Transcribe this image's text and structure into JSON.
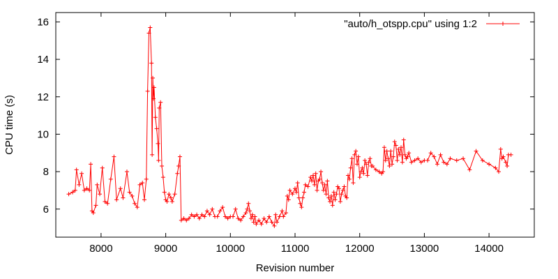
{
  "chart_data": {
    "type": "line",
    "xlabel": "Revision number",
    "ylabel": "CPU time (s)",
    "xlim": [
      7300,
      14700
    ],
    "ylim": [
      4.5,
      16.5
    ],
    "xticks": [
      8000,
      9000,
      10000,
      11000,
      12000,
      13000,
      14000
    ],
    "yticks": [
      6,
      8,
      10,
      12,
      14,
      16
    ],
    "grid": false,
    "legend_position": "top-right",
    "series": [
      {
        "name": "\"auto/h_otspp.cpu\" using 1:2",
        "color": "#ff0000",
        "marker": "plus",
        "points": [
          [
            7500,
            6.8
          ],
          [
            7560,
            6.9
          ],
          [
            7600,
            7.0
          ],
          [
            7620,
            8.1
          ],
          [
            7660,
            7.3
          ],
          [
            7700,
            7.9
          ],
          [
            7740,
            7.0
          ],
          [
            7780,
            7.1
          ],
          [
            7820,
            7.0
          ],
          [
            7840,
            8.4
          ],
          [
            7860,
            5.9
          ],
          [
            7880,
            5.8
          ],
          [
            7920,
            6.2
          ],
          [
            7940,
            7.3
          ],
          [
            7980,
            6.8
          ],
          [
            8020,
            8.2
          ],
          [
            8060,
            6.4
          ],
          [
            8100,
            6.3
          ],
          [
            8150,
            7.6
          ],
          [
            8200,
            8.8
          ],
          [
            8240,
            6.5
          ],
          [
            8300,
            7.1
          ],
          [
            8340,
            6.6
          ],
          [
            8400,
            8.0
          ],
          [
            8440,
            6.9
          ],
          [
            8480,
            6.7
          ],
          [
            8520,
            6.3
          ],
          [
            8560,
            6.1
          ],
          [
            8600,
            7.3
          ],
          [
            8640,
            7.4
          ],
          [
            8670,
            6.5
          ],
          [
            8700,
            7.6
          ],
          [
            8720,
            12.3
          ],
          [
            8740,
            15.4
          ],
          [
            8760,
            15.7
          ],
          [
            8780,
            13.8
          ],
          [
            8790,
            8.9
          ],
          [
            8800,
            13.0
          ],
          [
            8810,
            11.9
          ],
          [
            8820,
            12.5
          ],
          [
            8840,
            10.9
          ],
          [
            8860,
            10.3
          ],
          [
            8880,
            9.5
          ],
          [
            8890,
            8.6
          ],
          [
            8900,
            11.4
          ],
          [
            8920,
            11.7
          ],
          [
            8940,
            8.3
          ],
          [
            8960,
            7.7
          ],
          [
            8980,
            6.9
          ],
          [
            9000,
            6.5
          ],
          [
            9020,
            6.4
          ],
          [
            9050,
            6.8
          ],
          [
            9080,
            6.6
          ],
          [
            9100,
            6.4
          ],
          [
            9140,
            6.8
          ],
          [
            9180,
            7.9
          ],
          [
            9200,
            8.3
          ],
          [
            9220,
            8.8
          ],
          [
            9240,
            5.4
          ],
          [
            9280,
            5.5
          ],
          [
            9320,
            5.4
          ],
          [
            9360,
            5.5
          ],
          [
            9400,
            5.7
          ],
          [
            9440,
            5.6
          ],
          [
            9480,
            5.7
          ],
          [
            9520,
            5.5
          ],
          [
            9560,
            5.7
          ],
          [
            9600,
            5.6
          ],
          [
            9640,
            5.9
          ],
          [
            9680,
            5.7
          ],
          [
            9720,
            6.0
          ],
          [
            9760,
            5.6
          ],
          [
            9800,
            5.6
          ],
          [
            9840,
            5.9
          ],
          [
            9880,
            6.1
          ],
          [
            9920,
            5.6
          ],
          [
            9960,
            5.5
          ],
          [
            10000,
            5.6
          ],
          [
            10040,
            5.6
          ],
          [
            10080,
            6.0
          ],
          [
            10120,
            5.5
          ],
          [
            10160,
            5.4
          ],
          [
            10200,
            5.6
          ],
          [
            10240,
            5.8
          ],
          [
            10260,
            6.0
          ],
          [
            10280,
            6.3
          ],
          [
            10300,
            5.9
          ],
          [
            10320,
            5.5
          ],
          [
            10340,
            5.7
          ],
          [
            10360,
            5.3
          ],
          [
            10380,
            5.6
          ],
          [
            10400,
            5.2
          ],
          [
            10440,
            5.4
          ],
          [
            10480,
            5.2
          ],
          [
            10520,
            5.5
          ],
          [
            10560,
            5.3
          ],
          [
            10600,
            5.6
          ],
          [
            10640,
            5.3
          ],
          [
            10680,
            5.1
          ],
          [
            10700,
            5.7
          ],
          [
            10720,
            5.3
          ],
          [
            10760,
            5.6
          ],
          [
            10800,
            5.9
          ],
          [
            10820,
            5.6
          ],
          [
            10860,
            5.8
          ],
          [
            10880,
            6.7
          ],
          [
            10900,
            6.5
          ],
          [
            10920,
            7.0
          ],
          [
            10960,
            6.8
          ],
          [
            11000,
            7.1
          ],
          [
            11020,
            6.9
          ],
          [
            11040,
            7.4
          ],
          [
            11060,
            6.6
          ],
          [
            11080,
            6.3
          ],
          [
            11100,
            6.1
          ],
          [
            11120,
            6.6
          ],
          [
            11140,
            6.9
          ],
          [
            11160,
            7.3
          ],
          [
            11200,
            7.2
          ],
          [
            11240,
            7.7
          ],
          [
            11260,
            7.5
          ],
          [
            11280,
            7.8
          ],
          [
            11300,
            7.3
          ],
          [
            11320,
            7.9
          ],
          [
            11340,
            7.0
          ],
          [
            11360,
            7.5
          ],
          [
            11380,
            7.6
          ],
          [
            11400,
            8.0
          ],
          [
            11420,
            7.4
          ],
          [
            11440,
            7.0
          ],
          [
            11460,
            7.3
          ],
          [
            11480,
            6.8
          ],
          [
            11500,
            7.5
          ],
          [
            11520,
            6.6
          ],
          [
            11540,
            6.4
          ],
          [
            11560,
            6.7
          ],
          [
            11580,
            6.2
          ],
          [
            11600,
            6.9
          ],
          [
            11620,
            6.5
          ],
          [
            11640,
            6.8
          ],
          [
            11660,
            7.2
          ],
          [
            11680,
            7.1
          ],
          [
            11700,
            6.4
          ],
          [
            11720,
            6.8
          ],
          [
            11740,
            7.0
          ],
          [
            11760,
            7.2
          ],
          [
            11780,
            6.7
          ],
          [
            11800,
            6.6
          ],
          [
            11820,
            7.8
          ],
          [
            11840,
            7.6
          ],
          [
            11860,
            8.2
          ],
          [
            11880,
            8.7
          ],
          [
            11900,
            7.4
          ],
          [
            11920,
            8.9
          ],
          [
            11940,
            9.1
          ],
          [
            11960,
            8.4
          ],
          [
            11980,
            8.8
          ],
          [
            12000,
            7.7
          ],
          [
            12020,
            8.0
          ],
          [
            12040,
            8.2
          ],
          [
            12060,
            7.9
          ],
          [
            12080,
            8.6
          ],
          [
            12100,
            8.4
          ],
          [
            12120,
            7.8
          ],
          [
            12140,
            8.5
          ],
          [
            12160,
            8.7
          ],
          [
            12180,
            8.3
          ],
          [
            12200,
            8.3
          ],
          [
            12250,
            8.1
          ],
          [
            12300,
            8.0
          ],
          [
            12340,
            7.9
          ],
          [
            12360,
            8.0
          ],
          [
            12380,
            9.3
          ],
          [
            12400,
            8.6
          ],
          [
            12420,
            9.1
          ],
          [
            12440,
            8.7
          ],
          [
            12460,
            8.3
          ],
          [
            12480,
            9.1
          ],
          [
            12500,
            8.4
          ],
          [
            12520,
            8.8
          ],
          [
            12540,
            9.6
          ],
          [
            12560,
            9.4
          ],
          [
            12580,
            8.6
          ],
          [
            12600,
            9.2
          ],
          [
            12620,
            8.9
          ],
          [
            12640,
            9.3
          ],
          [
            12660,
            8.5
          ],
          [
            12680,
            9.7
          ],
          [
            12700,
            8.9
          ],
          [
            12720,
            8.7
          ],
          [
            12740,
            8.8
          ],
          [
            12760,
            9.0
          ],
          [
            12800,
            8.5
          ],
          [
            12850,
            8.6
          ],
          [
            12900,
            8.7
          ],
          [
            12950,
            8.5
          ],
          [
            13000,
            8.6
          ],
          [
            13050,
            8.6
          ],
          [
            13100,
            9.0
          ],
          [
            13150,
            8.8
          ],
          [
            13200,
            8.4
          ],
          [
            13250,
            8.9
          ],
          [
            13300,
            8.5
          ],
          [
            13350,
            8.4
          ],
          [
            13400,
            8.7
          ],
          [
            13500,
            8.6
          ],
          [
            13600,
            8.7
          ],
          [
            13700,
            8.1
          ],
          [
            13800,
            9.1
          ],
          [
            13900,
            8.6
          ],
          [
            14000,
            8.4
          ],
          [
            14100,
            8.2
          ],
          [
            14150,
            8.0
          ],
          [
            14180,
            9.2
          ],
          [
            14200,
            8.7
          ],
          [
            14220,
            8.8
          ],
          [
            14260,
            8.5
          ],
          [
            14280,
            8.3
          ],
          [
            14300,
            8.9
          ],
          [
            14340,
            8.9
          ]
        ]
      }
    ]
  }
}
